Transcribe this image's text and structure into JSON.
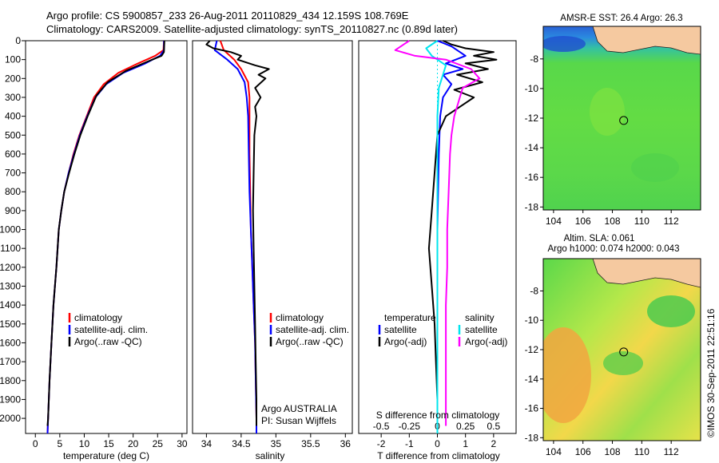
{
  "header": {
    "title_line1": "Argo profile: CS 5900857_233 26-Aug-2011 20110829_434 12.159S 108.769E",
    "title_line2": "Climatology: CARS2009. Satellite-adjusted climatology: synTS_20110827.nc (0.89d later)"
  },
  "credit": "©IMOS 30-Sep-2011 22:51:16",
  "colors": {
    "climatology": "#ff0000",
    "satellite": "#0000ff",
    "argo": "#000000",
    "salinity_satellite": "#00e5ee",
    "salinity_argo": "#ff00ff",
    "land": "#f5c9a0"
  },
  "panels": {
    "temperature": {
      "xlabel": "temperature (deg C)",
      "legend": [
        "climatology",
        "satellite-adj. clim.",
        "Argo(..raw -QC)"
      ]
    },
    "salinity": {
      "xlabel": "salinity",
      "legend": [
        "climatology",
        "satellite-adj. clim.",
        "Argo(..raw -QC)"
      ],
      "note1": "Argo AUSTRALIA",
      "note2": "PI: Susan Wijffels"
    },
    "difference": {
      "xlabel_top": "S difference from climatology",
      "xlabel_bottom": "T difference from climatology",
      "legend_temperature_title": "temperature",
      "legend_salinity_title": "salinity",
      "legend_temperature": [
        "satellite",
        "Argo(-adj)"
      ],
      "legend_salinity": [
        "satellite",
        "Argo(-adj)"
      ]
    },
    "map_sst": {
      "title": "AMSR-E SST: 26.4  Argo: 26.3"
    },
    "map_sla": {
      "title1": "Altim. SLA: 0.061",
      "title2": "Argo h1000: 0.074 h2000: 0.043"
    }
  },
  "chart_data": [
    {
      "type": "line",
      "name": "temperature_profile",
      "xlim": [
        -2,
        31
      ],
      "ylim": [
        2080,
        0
      ],
      "xticks": [
        0,
        5,
        10,
        15,
        20,
        25,
        30
      ],
      "yticks": [
        0,
        100,
        200,
        300,
        400,
        500,
        600,
        700,
        800,
        900,
        1000,
        1100,
        1200,
        1300,
        1400,
        1500,
        1600,
        1700,
        1800,
        1900,
        2000
      ],
      "series": [
        {
          "name": "climatology",
          "color": "#ff0000",
          "points": [
            [
              26.3,
              0
            ],
            [
              26.2,
              50
            ],
            [
              24.5,
              80
            ],
            [
              21,
              120
            ],
            [
              17,
              170
            ],
            [
              14,
              230
            ],
            [
              12,
              300
            ],
            [
              10.5,
              400
            ],
            [
              9,
              500
            ],
            [
              7.8,
              600
            ],
            [
              6.8,
              700
            ],
            [
              5.9,
              800
            ],
            [
              5.3,
              900
            ],
            [
              4.8,
              1000
            ],
            [
              4.3,
              1200
            ],
            [
              3.7,
              1400
            ],
            [
              3.3,
              1600
            ],
            [
              2.9,
              1800
            ],
            [
              2.6,
              2000
            ],
            [
              2.5,
              2080
            ]
          ]
        },
        {
          "name": "satellite-adj. clim.",
          "color": "#0000ff",
          "points": [
            [
              26.3,
              0
            ],
            [
              26.3,
              50
            ],
            [
              25.5,
              80
            ],
            [
              22.5,
              120
            ],
            [
              18,
              170
            ],
            [
              14.5,
              230
            ],
            [
              12.3,
              300
            ],
            [
              10.6,
              400
            ],
            [
              9.1,
              500
            ],
            [
              7.9,
              600
            ],
            [
              6.8,
              700
            ],
            [
              5.9,
              800
            ],
            [
              5.3,
              900
            ],
            [
              4.8,
              1000
            ],
            [
              4.3,
              1200
            ],
            [
              3.7,
              1400
            ],
            [
              3.3,
              1600
            ],
            [
              2.9,
              1800
            ],
            [
              2.6,
              2000
            ],
            [
              2.5,
              2080
            ]
          ]
        },
        {
          "name": "Argo(..raw -QC)",
          "color": "#000000",
          "points": [
            [
              26.4,
              0
            ],
            [
              26.3,
              60
            ],
            [
              25.8,
              80
            ],
            [
              23,
              110
            ],
            [
              18.5,
              160
            ],
            [
              14.8,
              220
            ],
            [
              12.5,
              290
            ],
            [
              10.7,
              400
            ],
            [
              9.2,
              500
            ],
            [
              8,
              600
            ],
            [
              6.9,
              700
            ],
            [
              5.9,
              800
            ],
            [
              5.3,
              900
            ],
            [
              4.8,
              1000
            ],
            [
              4.3,
              1200
            ],
            [
              3.7,
              1400
            ],
            [
              3.3,
              1600
            ],
            [
              2.9,
              1800
            ],
            [
              2.6,
              2000
            ],
            [
              2.5,
              2040
            ]
          ]
        }
      ]
    },
    {
      "type": "line",
      "name": "salinity_profile",
      "xlim": [
        33.8,
        36.1
      ],
      "ylim": [
        2080,
        0
      ],
      "xticks": [
        34,
        34.5,
        35,
        35.5,
        36
      ],
      "xticklabels": [
        "34",
        "34.5",
        "35",
        "35.5",
        "36"
      ],
      "series": [
        {
          "name": "climatology",
          "color": "#ff0000",
          "points": [
            [
              34.2,
              0
            ],
            [
              34.25,
              50
            ],
            [
              34.4,
              100
            ],
            [
              34.5,
              150
            ],
            [
              34.6,
              220
            ],
            [
              34.62,
              300
            ],
            [
              34.62,
              400
            ],
            [
              34.62,
              600
            ],
            [
              34.63,
              800
            ],
            [
              34.64,
              1000
            ],
            [
              34.66,
              1200
            ],
            [
              34.68,
              1400
            ],
            [
              34.7,
              1600
            ],
            [
              34.71,
              1800
            ],
            [
              34.72,
              2000
            ],
            [
              34.72,
              2080
            ]
          ]
        },
        {
          "name": "satellite-adj. clim.",
          "color": "#0000ff",
          "points": [
            [
              34.15,
              0
            ],
            [
              34.12,
              50
            ],
            [
              34.3,
              100
            ],
            [
              34.45,
              150
            ],
            [
              34.55,
              220
            ],
            [
              34.58,
              300
            ],
            [
              34.6,
              400
            ],
            [
              34.61,
              600
            ],
            [
              34.62,
              800
            ],
            [
              34.64,
              1000
            ],
            [
              34.66,
              1200
            ],
            [
              34.68,
              1400
            ],
            [
              34.7,
              1600
            ],
            [
              34.71,
              1800
            ],
            [
              34.72,
              2000
            ],
            [
              34.72,
              2080
            ]
          ]
        },
        {
          "name": "Argo(..raw -QC)",
          "color": "#000000",
          "points": [
            [
              34.05,
              0
            ],
            [
              34.0,
              20
            ],
            [
              34.1,
              40
            ],
            [
              34.35,
              60
            ],
            [
              34.5,
              80
            ],
            [
              34.45,
              100
            ],
            [
              34.7,
              130
            ],
            [
              34.9,
              150
            ],
            [
              34.75,
              180
            ],
            [
              34.85,
              200
            ],
            [
              34.7,
              250
            ],
            [
              34.78,
              300
            ],
            [
              34.7,
              350
            ],
            [
              34.72,
              400
            ],
            [
              34.69,
              500
            ],
            [
              34.68,
              700
            ],
            [
              34.67,
              900
            ],
            [
              34.68,
              1100
            ],
            [
              34.69,
              1300
            ],
            [
              34.7,
              1500
            ],
            [
              34.71,
              1700
            ],
            [
              34.72,
              1900
            ],
            [
              34.72,
              2040
            ]
          ]
        }
      ]
    },
    {
      "type": "line",
      "name": "difference_profile",
      "xlim": [
        -2.8,
        2.8
      ],
      "ylim": [
        2080,
        0
      ],
      "xticks_bottom": [
        -2,
        -1,
        0,
        1,
        2
      ],
      "xticks_top": [
        -0.5,
        -0.25,
        0,
        0.25,
        0.5
      ],
      "series": [
        {
          "name": "temperature satellite",
          "color": "#0000ff",
          "points": [
            [
              0,
              0
            ],
            [
              0.5,
              30
            ],
            [
              1.0,
              80
            ],
            [
              0.3,
              120
            ],
            [
              0.9,
              150
            ],
            [
              0.2,
              180
            ],
            [
              0.5,
              230
            ],
            [
              0.2,
              300
            ],
            [
              0.1,
              400
            ],
            [
              0.05,
              600
            ],
            [
              0,
              1000
            ],
            [
              0,
              1600
            ],
            [
              0,
              2080
            ]
          ]
        },
        {
          "name": "temperature Argo(-adj)",
          "color": "#000000",
          "points": [
            [
              0.2,
              0
            ],
            [
              0.5,
              20
            ],
            [
              1.0,
              40
            ],
            [
              2.0,
              60
            ],
            [
              1.3,
              80
            ],
            [
              2.1,
              100
            ],
            [
              1.0,
              120
            ],
            [
              1.8,
              150
            ],
            [
              0.7,
              180
            ],
            [
              1.6,
              220
            ],
            [
              0.6,
              260
            ],
            [
              1.3,
              300
            ],
            [
              0.3,
              400
            ],
            [
              0,
              500
            ],
            [
              -0.1,
              700
            ],
            [
              -0.2,
              900
            ],
            [
              -0.3,
              1100
            ],
            [
              -0.2,
              1300
            ],
            [
              -0.1,
              1500
            ],
            [
              -0.05,
              1700
            ],
            [
              0,
              1900
            ],
            [
              0,
              2040
            ]
          ]
        },
        {
          "name": "salinity satellite",
          "color": "#00e5ee",
          "points": [
            [
              0,
              0
            ],
            [
              -0.4,
              40
            ],
            [
              -0.2,
              80
            ],
            [
              0.3,
              130
            ],
            [
              0.2,
              180
            ],
            [
              0.05,
              250
            ],
            [
              0,
              400
            ],
            [
              0,
              800
            ],
            [
              0,
              1200
            ],
            [
              0,
              1600
            ],
            [
              0,
              2080
            ]
          ]
        },
        {
          "name": "salinity Argo(-adj)",
          "color": "#ff00ff",
          "points": [
            [
              -1.0,
              0
            ],
            [
              -1.5,
              50
            ],
            [
              -0.8,
              80
            ],
            [
              0.3,
              100
            ],
            [
              1.2,
              150
            ],
            [
              1.5,
              200
            ],
            [
              0.9,
              250
            ],
            [
              0.8,
              300
            ],
            [
              0.6,
              400
            ],
            [
              0.5,
              500
            ],
            [
              0.45,
              600
            ],
            [
              0.4,
              800
            ],
            [
              0.35,
              1000
            ],
            [
              0.35,
              1200
            ],
            [
              0.3,
              1400
            ],
            [
              0.3,
              1600
            ],
            [
              0.3,
              1800
            ],
            [
              0.3,
              2040
            ]
          ]
        }
      ]
    },
    {
      "type": "heatmap",
      "name": "sst_map",
      "xlim": [
        103.3,
        114
      ],
      "ylim": [
        -18.2,
        -5.8
      ],
      "xticks": [
        104,
        106,
        108,
        110,
        112
      ],
      "yticks": [
        -8,
        -10,
        -12,
        -14,
        -16,
        -18
      ],
      "argo_position": [
        108.769,
        -12.159
      ]
    },
    {
      "type": "heatmap",
      "name": "sla_map",
      "xlim": [
        103.3,
        114
      ],
      "ylim": [
        -18.2,
        -5.8
      ],
      "xticks": [
        104,
        106,
        108,
        110,
        112
      ],
      "yticks": [
        -8,
        -10,
        -12,
        -14,
        -16,
        -18
      ],
      "argo_position": [
        108.769,
        -12.159
      ]
    }
  ]
}
